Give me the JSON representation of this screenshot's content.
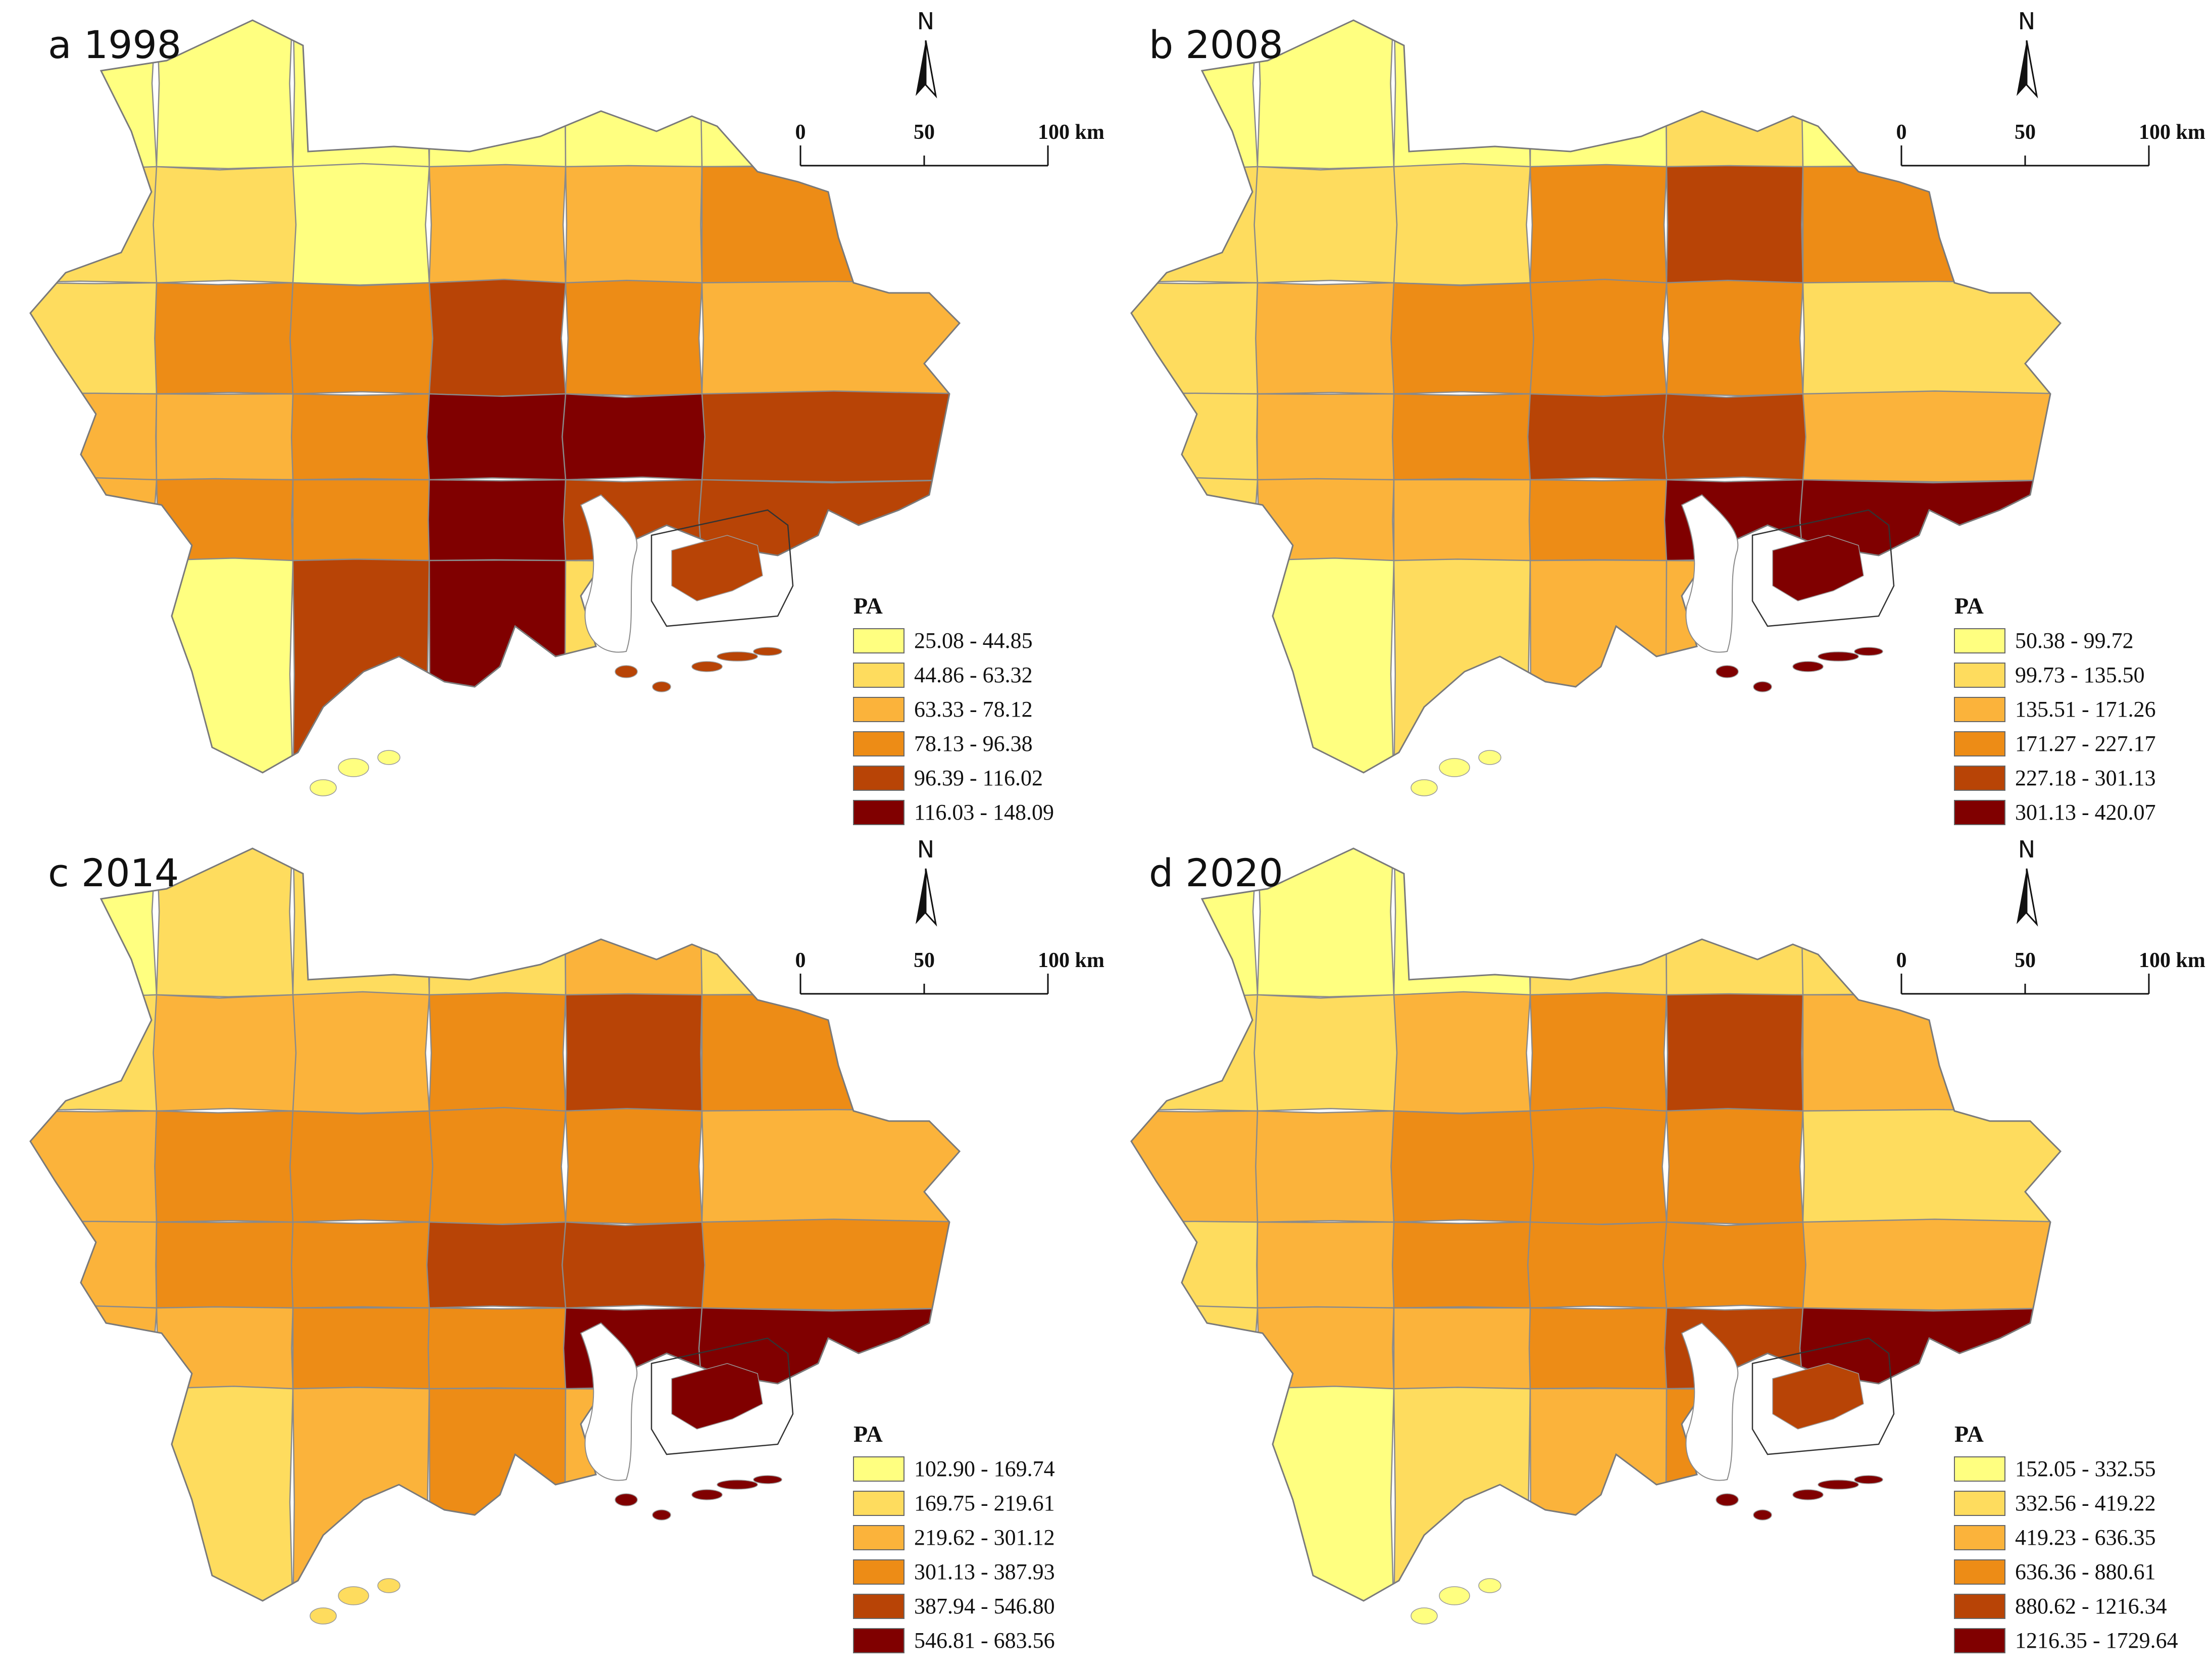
{
  "north_label": "N",
  "scale_bar": {
    "ticks": [
      "0",
      "50",
      "100 km"
    ]
  },
  "legend_title": "PA",
  "class_colors": [
    "#ffff80",
    "#fedc5e",
    "#fbb33b",
    "#ed8c16",
    "#b84406",
    "#800000"
  ],
  "icons": [
    "north-arrow-icon"
  ],
  "panels": [
    {
      "label": "a 1998",
      "legend": [
        "25.08 - 44.85",
        "44.86 - 63.32",
        "63.33 - 78.12",
        "78.13 - 96.38",
        "96.39 - 116.02",
        "116.03 - 148.09"
      ],
      "classes": [
        0,
        0,
        0,
        0,
        0,
        0,
        1,
        1,
        0,
        2,
        2,
        3,
        1,
        3,
        3,
        4,
        3,
        2,
        2,
        2,
        3,
        5,
        5,
        4,
        2,
        3,
        3,
        5,
        4,
        4,
        2,
        0,
        4,
        5,
        1,
        1
      ]
    },
    {
      "label": "b 2008",
      "legend": [
        "50.38 - 99.72",
        "99.73 - 135.50",
        "135.51 - 171.26",
        "171.27 - 227.17",
        "227.18 - 301.13",
        "301.13 - 420.07"
      ],
      "classes": [
        0,
        0,
        0,
        0,
        1,
        0,
        1,
        1,
        1,
        3,
        4,
        3,
        1,
        2,
        3,
        3,
        3,
        1,
        1,
        2,
        3,
        4,
        4,
        2,
        1,
        2,
        2,
        3,
        5,
        5,
        0,
        0,
        1,
        2,
        2,
        1
      ]
    },
    {
      "label": "c 2014",
      "legend": [
        "102.90 - 169.74",
        "169.75 - 219.61",
        "219.62 - 301.12",
        "301.13 - 387.93",
        "387.94 - 546.80",
        "546.81 - 683.56"
      ],
      "classes": [
        0,
        1,
        1,
        1,
        2,
        1,
        1,
        2,
        2,
        3,
        4,
        3,
        2,
        3,
        3,
        3,
        3,
        2,
        2,
        3,
        3,
        4,
        4,
        3,
        2,
        2,
        3,
        3,
        5,
        5,
        1,
        1,
        2,
        3,
        2,
        2
      ]
    },
    {
      "label": "d 2020",
      "legend": [
        "152.05 - 332.55",
        "332.56 - 419.22",
        "419.23 - 636.35",
        "636.36 - 880.61",
        "880.62 - 1216.34",
        "1216.35 - 1729.64"
      ],
      "classes": [
        0,
        0,
        0,
        1,
        1,
        1,
        1,
        1,
        2,
        3,
        4,
        2,
        2,
        2,
        3,
        3,
        3,
        1,
        1,
        2,
        3,
        3,
        3,
        2,
        1,
        2,
        2,
        3,
        4,
        5,
        0,
        0,
        1,
        2,
        3,
        3
      ]
    }
  ]
}
